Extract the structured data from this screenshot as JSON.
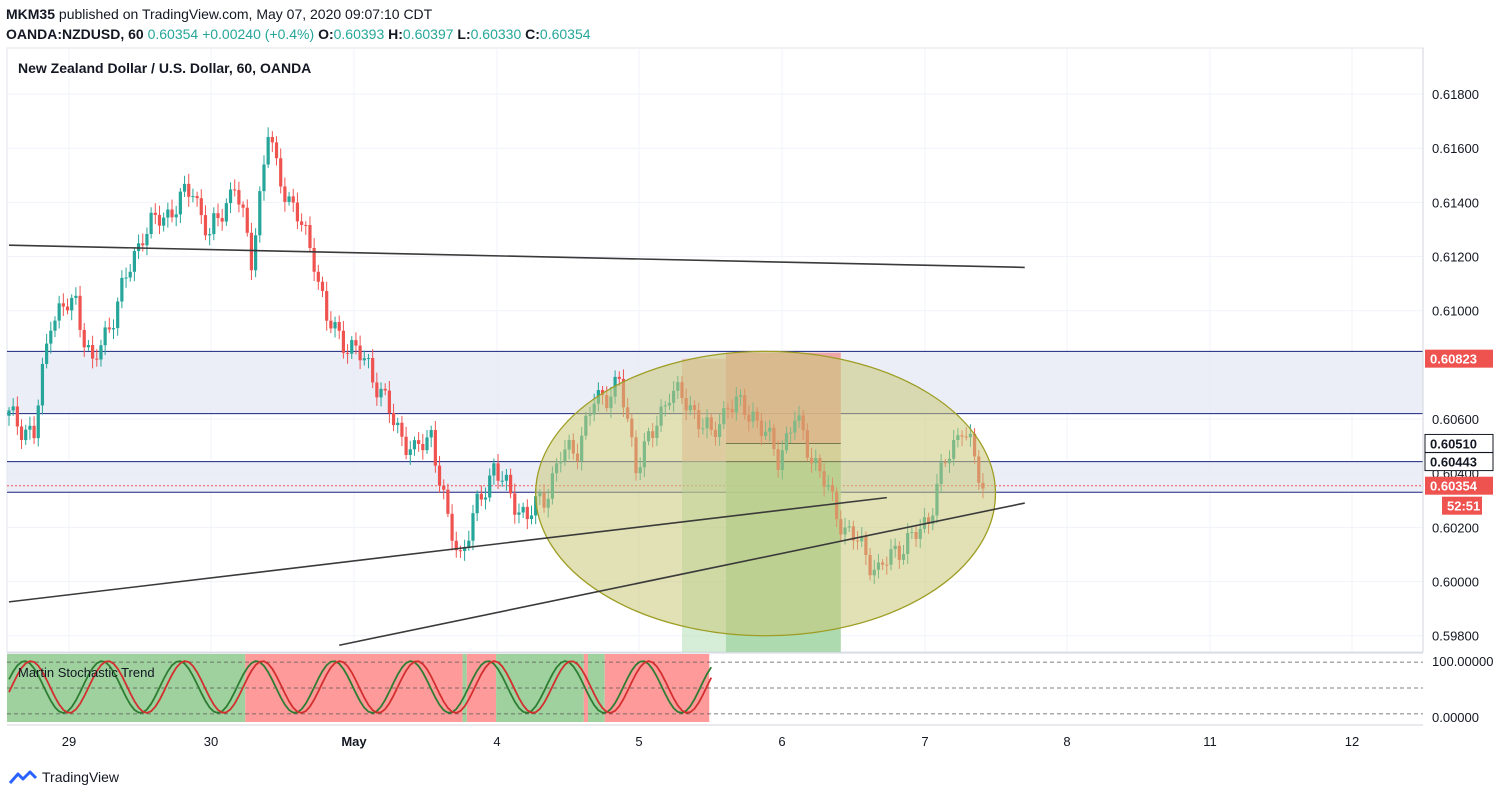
{
  "header": {
    "publisher": "MKM35",
    "published_text": "published on TradingView.com, May 07, 2020 09:07:10 CDT",
    "symbol": "OANDA:NZDUSD, 60",
    "last": "0.60354",
    "change": "+0.00240 (+0.4%)",
    "o_label": "O:",
    "o_value": "0.60393",
    "h_label": "H:",
    "h_value": "0.60397",
    "l_label": "L:",
    "l_value": "0.60330",
    "c_label": "C:",
    "c_value": "0.60354"
  },
  "footer": {
    "logo_text": "TradingView"
  },
  "colors": {
    "up": "#26a69a",
    "down": "#ef5350",
    "trendline": "#3a3a3a",
    "zone_fill": "#e8eaf6",
    "zone_border": "#1a237e",
    "circle_fill": "#c8c878",
    "target_fill": "#a5d6a7",
    "stop_fill": "#ef9a9a",
    "price_badge": "#ef5350",
    "osc_green": "#2e7d32",
    "osc_red": "#d32f2f",
    "osc_bg_green": "#9ed19e",
    "osc_bg_red": "#ff9a9a"
  },
  "chart_data": {
    "type": "candlestick",
    "title": "New Zealand Dollar / U.S. Dollar, 60, OANDA",
    "y_ticks": [
      "0.61800",
      "0.61600",
      "0.61400",
      "0.61200",
      "0.61000",
      "0.60600",
      "0.60400",
      "0.60200",
      "0.60000",
      "0.59800"
    ],
    "ylim": [
      0.5974,
      0.6197
    ],
    "x_labels": [
      "29",
      "30",
      "May",
      "4",
      "5",
      "6",
      "7",
      "8",
      "11",
      "12"
    ],
    "price_labels": [
      {
        "value": "0.60823",
        "kind": "stop"
      },
      {
        "value": "0.60510",
        "kind": "level"
      },
      {
        "value": "0.60443",
        "kind": "level"
      },
      {
        "value": "0.60354",
        "kind": "last"
      },
      {
        "value": "52:51",
        "kind": "countdown"
      }
    ],
    "anchors": [
      [
        0,
        0.6061
      ],
      [
        6,
        0.6054
      ],
      [
        10,
        0.6098
      ],
      [
        16,
        0.6103
      ],
      [
        20,
        0.6079
      ],
      [
        26,
        0.6103
      ],
      [
        32,
        0.6129
      ],
      [
        38,
        0.6136
      ],
      [
        44,
        0.6145
      ],
      [
        48,
        0.6127
      ],
      [
        54,
        0.6147
      ],
      [
        58,
        0.6119
      ],
      [
        62,
        0.6166
      ],
      [
        64,
        0.6152
      ],
      [
        68,
        0.6138
      ],
      [
        73,
        0.612
      ],
      [
        76,
        0.6096
      ],
      [
        82,
        0.6086
      ],
      [
        86,
        0.608
      ],
      [
        92,
        0.6059
      ],
      [
        97,
        0.6047
      ],
      [
        101,
        0.6055
      ],
      [
        105,
        0.6021
      ],
      [
        108,
        0.601
      ],
      [
        112,
        0.6027
      ],
      [
        116,
        0.6043
      ],
      [
        120,
        0.6031
      ],
      [
        124,
        0.6024
      ],
      [
        128,
        0.6031
      ],
      [
        132,
        0.6046
      ],
      [
        136,
        0.605
      ],
      [
        140,
        0.6066
      ],
      [
        146,
        0.6073
      ],
      [
        150,
        0.6044
      ],
      [
        154,
        0.6054
      ],
      [
        158,
        0.6071
      ],
      [
        164,
        0.6063
      ],
      [
        168,
        0.6053
      ],
      [
        172,
        0.6066
      ],
      [
        178,
        0.6062
      ],
      [
        184,
        0.6046
      ],
      [
        188,
        0.606
      ],
      [
        192,
        0.6047
      ],
      [
        196,
        0.6033
      ],
      [
        200,
        0.6019
      ],
      [
        204,
        0.6013
      ],
      [
        208,
        0.6003
      ],
      [
        212,
        0.6012
      ],
      [
        216,
        0.6015
      ],
      [
        220,
        0.6024
      ],
      [
        224,
        0.6044
      ],
      [
        228,
        0.6058
      ],
      [
        230,
        0.6049
      ],
      [
        233,
        0.6035
      ]
    ],
    "trendlines": [
      {
        "x1": 0,
        "y1": 0.61242,
        "x2": 243,
        "y2": 0.6116
      },
      {
        "x1": 0,
        "y1": 0.59925,
        "x2": 210,
        "y2": 0.6031
      },
      {
        "x1": 79,
        "y1": 0.59765,
        "x2": 243,
        "y2": 0.6029
      }
    ],
    "zones": [
      {
        "y_top": 0.6085,
        "y_bot": 0.6062
      },
      {
        "y_top": 0.60443,
        "y_bot": 0.6033
      }
    ],
    "position": {
      "x1": 161,
      "x_mid": 171.5,
      "x2": 199,
      "entry": 0.60443,
      "stop_top": 0.60823,
      "stop_mid": 0.6051,
      "target": 0.5974
    },
    "circle": {
      "cx": 181,
      "cy": 0.60325,
      "rx": 55,
      "ry": 0.00525
    },
    "oscillator": {
      "name": "Martin Stochastic Trend",
      "y_ticks": [
        "100.00000",
        "0.00000"
      ],
      "segments": [
        {
          "x1": 0,
          "x2": 57,
          "state": "green"
        },
        {
          "x1": 57,
          "x2": 109,
          "state": "red"
        },
        {
          "x1": 109,
          "x2": 110,
          "state": "green"
        },
        {
          "x1": 110,
          "x2": 117,
          "state": "red"
        },
        {
          "x1": 117,
          "x2": 138,
          "state": "green"
        },
        {
          "x1": 138,
          "x2": 139,
          "state": "red"
        },
        {
          "x1": 139,
          "x2": 143,
          "state": "green"
        },
        {
          "x1": 143,
          "x2": 168,
          "state": "red"
        }
      ]
    }
  }
}
